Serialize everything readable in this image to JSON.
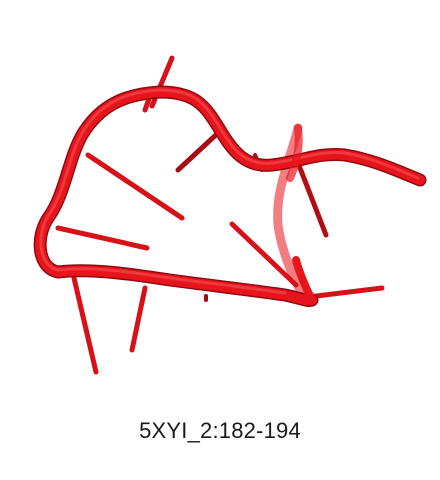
{
  "structure": {
    "label": "5XYI_2:182-194",
    "backbone_color": "#e8141c",
    "base_color": "#d81018",
    "shadow_color": "#9e0a10",
    "background_color": "#ffffff"
  }
}
